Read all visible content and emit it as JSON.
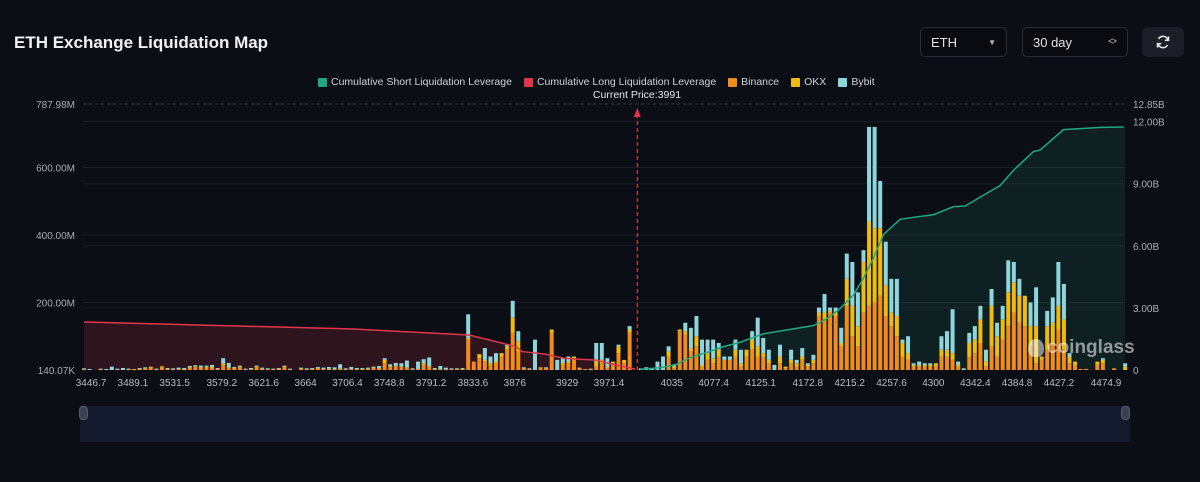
{
  "header": {
    "title": "ETH Exchange Liquidation Map",
    "coin_select": "ETH",
    "range_select": "30 day"
  },
  "icons": {
    "dropdown": "caret-down-icon",
    "stepper": "chevron-updown-icon",
    "refresh": "refresh-icon"
  },
  "watermark": "coinglass",
  "colors": {
    "short": "#1fa883",
    "long": "#e0364a",
    "binance": "#f38b1c",
    "okx": "#f0ba0e",
    "bybit": "#8fd5dc"
  },
  "chart_data": {
    "type": "bar",
    "title": "ETH Exchange Liquidation Map",
    "legend": [
      "Cumulative Short Liquidation Leverage",
      "Cumulative Long Liquidation Leverage",
      "Binance",
      "OKX",
      "Bybit"
    ],
    "legend_position": "top-center",
    "current_price": 3991,
    "current_price_label": "Current Price:3991",
    "x_ticks": [
      "3446.7",
      "3489.1",
      "3531.5",
      "3579.2",
      "3621.6",
      "3664",
      "3706.4",
      "3748.8",
      "3791.2",
      "3833.6",
      "3876",
      "3929",
      "3971.4",
      "4035",
      "4077.4",
      "4125.1",
      "4172.8",
      "4215.2",
      "4257.6",
      "4300",
      "4342.4",
      "4384.8",
      "4427.2",
      "4474.9"
    ],
    "x_range": [
      3446.7,
      4474.9
    ],
    "y_left": {
      "unit": "M",
      "range": [
        0,
        787.98
      ],
      "ticks": [
        {
          "v": 787.98,
          "label": "787.98M"
        },
        {
          "v": 600,
          "label": "600.00M"
        },
        {
          "v": 400,
          "label": "400.00M"
        },
        {
          "v": 200,
          "label": "200.00M"
        },
        {
          "v": 0,
          "label": "140.07K"
        }
      ]
    },
    "y_right": {
      "unit": "B",
      "range": [
        0,
        12.85
      ],
      "ticks": [
        {
          "v": 12.85,
          "label": "12.85B"
        },
        {
          "v": 12,
          "label": "12.00B"
        },
        {
          "v": 9,
          "label": "9.00B"
        },
        {
          "v": 6,
          "label": "6.00B"
        },
        {
          "v": 3,
          "label": "3.00B"
        },
        {
          "v": 0,
          "label": "0"
        }
      ]
    },
    "bar_price_start": 3439.6,
    "bar_price_step": 5.64,
    "bar_series_order": [
      "Binance",
      "OKX",
      "Bybit"
    ],
    "bars_millions": [
      [
        2,
        0,
        3
      ],
      [
        0,
        0,
        3
      ],
      [
        0,
        0,
        0
      ],
      [
        2,
        0,
        2
      ],
      [
        0,
        0,
        3
      ],
      [
        0,
        0,
        10
      ],
      [
        2,
        0,
        2
      ],
      [
        0,
        0,
        6
      ],
      [
        2,
        1,
        1
      ],
      [
        2,
        1,
        0
      ],
      [
        3,
        1,
        2
      ],
      [
        4,
        1,
        3
      ],
      [
        8,
        2,
        0
      ],
      [
        2,
        0,
        2
      ],
      [
        8,
        3,
        0
      ],
      [
        3,
        1,
        2
      ],
      [
        2,
        0,
        3
      ],
      [
        3,
        0,
        4
      ],
      [
        2,
        1,
        3
      ],
      [
        6,
        2,
        4
      ],
      [
        8,
        3,
        3
      ],
      [
        6,
        2,
        5
      ],
      [
        8,
        2,
        3
      ],
      [
        6,
        3,
        6
      ],
      [
        3,
        1,
        2
      ],
      [
        15,
        5,
        15
      ],
      [
        5,
        4,
        12
      ],
      [
        4,
        2,
        3
      ],
      [
        8,
        3,
        2
      ],
      [
        2,
        0,
        2
      ],
      [
        3,
        0,
        3
      ],
      [
        8,
        3,
        2
      ],
      [
        3,
        1,
        3
      ],
      [
        2,
        0,
        3
      ],
      [
        2,
        0,
        2
      ],
      [
        3,
        1,
        2
      ],
      [
        8,
        3,
        2
      ],
      [
        2,
        0,
        2
      ],
      [
        0,
        0,
        0
      ],
      [
        4,
        1,
        2
      ],
      [
        2,
        0,
        3
      ],
      [
        3,
        1,
        2
      ],
      [
        4,
        2,
        3
      ],
      [
        3,
        0,
        4
      ],
      [
        3,
        1,
        5
      ],
      [
        2,
        0,
        6
      ],
      [
        4,
        1,
        12
      ],
      [
        2,
        0,
        3
      ],
      [
        3,
        0,
        6
      ],
      [
        2,
        0,
        4
      ],
      [
        3,
        1,
        2
      ],
      [
        3,
        1,
        3
      ],
      [
        6,
        2,
        2
      ],
      [
        4,
        2,
        6
      ],
      [
        20,
        10,
        5
      ],
      [
        8,
        3,
        6
      ],
      [
        10,
        3,
        8
      ],
      [
        8,
        3,
        9
      ],
      [
        5,
        3,
        20
      ],
      [
        2,
        0,
        3
      ],
      [
        3,
        0,
        22
      ],
      [
        15,
        5,
        12
      ],
      [
        10,
        2,
        25
      ],
      [
        3,
        1,
        2
      ],
      [
        2,
        0,
        10
      ],
      [
        2,
        0,
        5
      ],
      [
        3,
        0,
        2
      ],
      [
        3,
        0,
        2
      ],
      [
        3,
        1,
        2
      ],
      [
        90,
        5,
        70
      ],
      [
        25,
        0,
        0
      ],
      [
        35,
        12,
        0
      ],
      [
        25,
        5,
        35
      ],
      [
        15,
        5,
        20
      ],
      [
        20,
        5,
        25
      ],
      [
        40,
        10,
        0
      ],
      [
        60,
        10,
        5
      ],
      [
        110,
        45,
        50
      ],
      [
        55,
        30,
        30
      ],
      [
        4,
        2,
        2
      ],
      [
        3,
        0,
        2
      ],
      [
        0,
        0,
        90
      ],
      [
        5,
        3,
        0
      ],
      [
        4,
        2,
        2
      ],
      [
        110,
        10,
        0
      ],
      [
        0,
        0,
        30
      ],
      [
        15,
        5,
        15
      ],
      [
        20,
        5,
        15
      ],
      [
        30,
        10,
        0
      ],
      [
        5,
        2,
        0
      ],
      [
        3,
        0,
        0
      ],
      [
        2,
        0,
        2
      ],
      [
        10,
        15,
        55
      ],
      [
        20,
        10,
        50
      ],
      [
        5,
        5,
        25
      ],
      [
        20,
        5,
        0
      ],
      [
        50,
        20,
        5
      ],
      [
        20,
        10,
        0
      ],
      [
        110,
        10,
        10
      ],
      [
        0,
        0,
        0
      ],
      [
        0,
        0,
        5
      ],
      [
        0,
        0,
        8
      ],
      [
        0,
        0,
        3
      ],
      [
        0,
        0,
        25
      ],
      [
        0,
        0,
        40
      ],
      [
        40,
        15,
        15
      ],
      [
        5,
        5,
        5
      ],
      [
        115,
        5,
        0
      ],
      [
        105,
        10,
        25
      ],
      [
        55,
        10,
        60
      ],
      [
        70,
        30,
        60
      ],
      [
        10,
        5,
        75
      ],
      [
        30,
        20,
        40
      ],
      [
        20,
        15,
        55
      ],
      [
        40,
        20,
        20
      ],
      [
        30,
        0,
        10
      ],
      [
        30,
        0,
        10
      ],
      [
        40,
        20,
        30
      ],
      [
        10,
        10,
        40
      ],
      [
        40,
        20,
        0
      ],
      [
        60,
        30,
        25
      ],
      [
        40,
        30,
        85
      ],
      [
        40,
        10,
        45
      ],
      [
        20,
        10,
        30
      ],
      [
        0,
        0,
        15
      ],
      [
        20,
        20,
        35
      ],
      [
        5,
        5,
        0
      ],
      [
        20,
        10,
        30
      ],
      [
        10,
        10,
        10
      ],
      [
        30,
        10,
        25
      ],
      [
        10,
        5,
        5
      ],
      [
        20,
        10,
        15
      ],
      [
        160,
        10,
        15
      ],
      [
        150,
        20,
        55
      ],
      [
        170,
        5,
        10
      ],
      [
        160,
        10,
        15
      ],
      [
        70,
        10,
        45
      ],
      [
        190,
        80,
        75
      ],
      [
        100,
        90,
        130
      ],
      [
        70,
        60,
        100
      ],
      [
        170,
        150,
        35
      ],
      [
        190,
        250,
        280
      ],
      [
        200,
        220,
        300
      ],
      [
        220,
        200,
        140
      ],
      [
        160,
        90,
        130
      ],
      [
        130,
        40,
        100
      ],
      [
        100,
        60,
        110
      ],
      [
        40,
        40,
        10
      ],
      [
        30,
        20,
        50
      ],
      [
        10,
        5,
        5
      ],
      [
        10,
        5,
        10
      ],
      [
        10,
        5,
        5
      ],
      [
        10,
        5,
        5
      ],
      [
        10,
        10,
        0
      ],
      [
        40,
        20,
        40
      ],
      [
        40,
        20,
        55
      ],
      [
        30,
        20,
        130
      ],
      [
        10,
        5,
        10
      ],
      [
        0,
        0,
        5
      ],
      [
        40,
        40,
        30
      ],
      [
        50,
        40,
        40
      ],
      [
        80,
        70,
        40
      ],
      [
        10,
        15,
        35
      ],
      [
        70,
        120,
        50
      ],
      [
        40,
        60,
        40
      ],
      [
        90,
        60,
        40
      ],
      [
        130,
        100,
        95
      ],
      [
        170,
        90,
        60
      ],
      [
        140,
        80,
        50
      ],
      [
        130,
        90,
        0
      ],
      [
        70,
        60,
        70
      ],
      [
        20,
        110,
        115
      ],
      [
        30,
        10,
        0
      ],
      [
        60,
        70,
        45
      ],
      [
        80,
        60,
        75
      ],
      [
        120,
        70,
        130
      ],
      [
        60,
        90,
        105
      ],
      [
        20,
        20,
        10
      ],
      [
        15,
        10,
        0
      ],
      [
        3,
        0,
        0
      ],
      [
        3,
        0,
        0
      ],
      [
        0,
        0,
        0
      ],
      [
        15,
        10,
        0
      ],
      [
        20,
        10,
        5
      ],
      [
        0,
        0,
        0
      ],
      [
        5,
        0,
        0
      ],
      [
        0,
        0,
        0
      ],
      [
        0,
        10,
        10
      ]
    ],
    "cumulative_short_B": [
      [
        4002.9,
        0.03
      ],
      [
        4023.2,
        0.11
      ],
      [
        4040.1,
        0.28
      ],
      [
        4053.6,
        0.6
      ],
      [
        4070.5,
        0.85
      ],
      [
        4087.3,
        1.13
      ],
      [
        4104.3,
        1.34
      ],
      [
        4127.9,
        1.75
      ],
      [
        4148.2,
        1.91
      ],
      [
        4178.6,
        2.15
      ],
      [
        4192.1,
        2.48
      ],
      [
        4205.6,
        2.97
      ],
      [
        4219.1,
        3.62
      ],
      [
        4229.2,
        4.43
      ],
      [
        4239.3,
        5.41
      ],
      [
        4249.5,
        6.55
      ],
      [
        4266.3,
        7.28
      ],
      [
        4283.3,
        7.4
      ],
      [
        4300.1,
        7.5
      ],
      [
        4320.4,
        7.89
      ],
      [
        4332.2,
        7.92
      ],
      [
        4347.4,
        8.35
      ],
      [
        4367.7,
        8.92
      ],
      [
        4381.2,
        9.65
      ],
      [
        4401.4,
        10.55
      ],
      [
        4408.2,
        10.63
      ],
      [
        4431.8,
        11.61
      ],
      [
        4469.2,
        11.72
      ],
      [
        4492.8,
        11.74
      ]
    ],
    "cumulative_long_B": [
      [
        3439.6,
        2.32
      ],
      [
        3712.2,
        1.98
      ],
      [
        3829.7,
        1.69
      ],
      [
        3877.3,
        1.13
      ],
      [
        3883.4,
        0.89
      ],
      [
        3906.7,
        0.77
      ],
      [
        3926,
        0.56
      ],
      [
        3958.4,
        0.48
      ],
      [
        3973.6,
        0.29
      ],
      [
        3998,
        0.05
      ]
    ]
  }
}
